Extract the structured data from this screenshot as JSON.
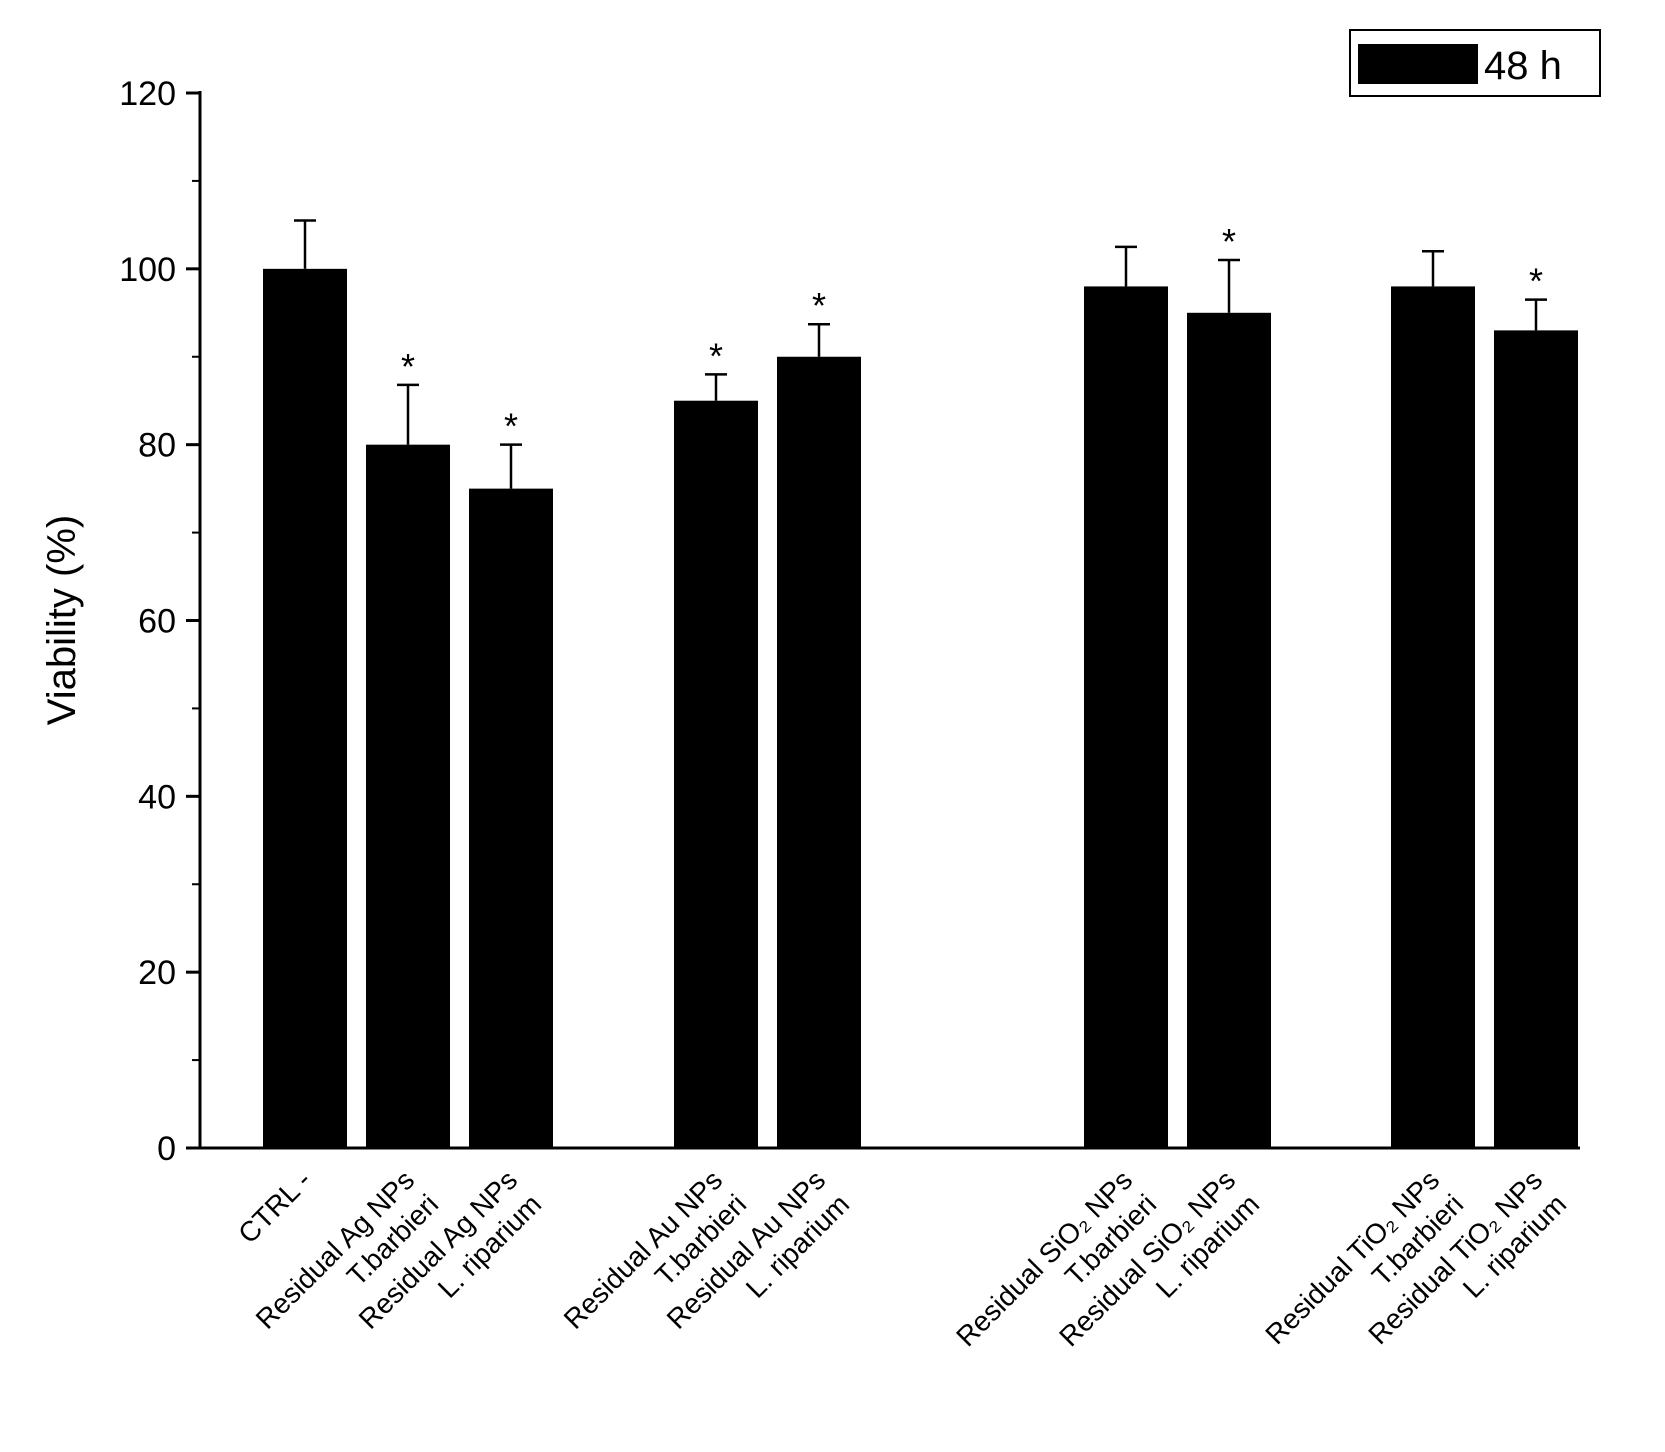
{
  "chart_data": {
    "type": "bar",
    "title": "",
    "xlabel": "",
    "ylabel": "Viability (%)",
    "ylim": [
      0,
      120
    ],
    "yticks": [
      0,
      20,
      40,
      60,
      80,
      100,
      120
    ],
    "legend": {
      "label": "48 h",
      "color": "#000000",
      "position": "top-right"
    },
    "bar_color": "#000000",
    "categories": [
      {
        "lines": [
          "CTRL -"
        ],
        "value": 100,
        "error": 5.5,
        "significant": false
      },
      {
        "lines": [
          "Residual Ag NPs",
          "T.barbieri"
        ],
        "value": 80,
        "error": 6.8,
        "significant": true
      },
      {
        "lines": [
          "Residual Ag NPs",
          "L. riparium"
        ],
        "value": 75,
        "error": 5.0,
        "significant": true
      },
      {
        "lines": [
          "Residual Au NPs",
          "T.barbieri"
        ],
        "value": 85,
        "error": 3.0,
        "significant": true
      },
      {
        "lines": [
          "Residual Au  NPs",
          "L. riparium"
        ],
        "value": 90,
        "error": 3.7,
        "significant": true
      },
      {
        "lines": [
          "Residual SiO₂ NPs",
          "T.barbieri"
        ],
        "value": 98,
        "error": 4.5,
        "significant": false
      },
      {
        "lines": [
          "Residual SiO₂  NPs",
          "L. riparium"
        ],
        "value": 95,
        "error": 6.0,
        "significant": true
      },
      {
        "lines": [
          "Residual TiO₂  NPs",
          "T.barbieri"
        ],
        "value": 98,
        "error": 4.0,
        "significant": false
      },
      {
        "lines": [
          "Residual TiO₂  NPs",
          "L. riparium"
        ],
        "value": 93,
        "error": 3.5,
        "significant": true
      }
    ],
    "significance_marker": "*"
  }
}
